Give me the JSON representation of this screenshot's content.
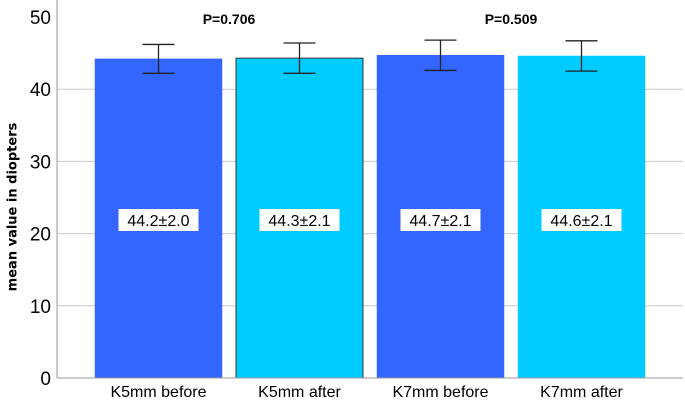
{
  "chart_data": {
    "type": "bar",
    "title": "",
    "xlabel": "",
    "ylabel": "mean value in diopters",
    "ylim": [
      0,
      52.5
    ],
    "yticks": [
      0,
      10,
      20,
      30,
      40,
      50
    ],
    "grid": {
      "horizontal": true,
      "lines": [
        10,
        20,
        30,
        40
      ]
    },
    "legend": null,
    "categories": [
      "K5mm before",
      "K5mm after",
      "K7mm before",
      "K7mm after"
    ],
    "values": [
      44.2,
      44.3,
      44.7,
      44.6
    ],
    "errors": [
      2.0,
      2.1,
      2.1,
      2.1
    ],
    "data_labels": [
      "44.2±2.0",
      "44.3±2.1",
      "44.7±2.1",
      "44.6±2.1"
    ],
    "bar_colors": [
      "#3366FF",
      "#00CCFF",
      "#3366FF",
      "#00CCFF"
    ],
    "bar_outlined": [
      false,
      true,
      false,
      false
    ],
    "annotations": [
      {
        "text": "P=0.706",
        "between": [
          "K5mm before",
          "K5mm after"
        ]
      },
      {
        "text": "P=0.509",
        "between": [
          "K7mm before",
          "K7mm after"
        ]
      }
    ]
  },
  "axis": {
    "y_title": "mean value in diopters"
  },
  "style": {
    "grid_color": "#cccccc",
    "axis_color": "#9a9a9a",
    "outline_color": "#333333",
    "label_bg": "#ffffff",
    "text_color": "#000000"
  }
}
